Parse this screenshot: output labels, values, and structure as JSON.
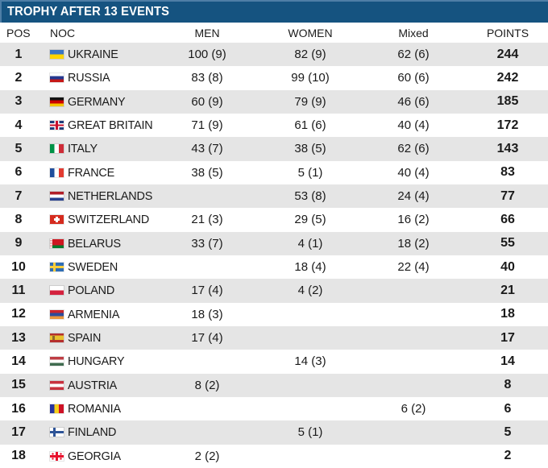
{
  "title": "TROPHY AFTER 13 EVENTS",
  "colors": {
    "title_bar_bg": "#155380",
    "title_bar_border": "#4E7EA6",
    "title_text": "#FFFFFF",
    "row_alt_bg": "#E5E5E5",
    "row_bg": "#FFFFFF",
    "text": "#1A1A1A"
  },
  "table": {
    "columns": [
      {
        "key": "pos",
        "label": "POS"
      },
      {
        "key": "noc",
        "label": "NOC"
      },
      {
        "key": "men",
        "label": "MEN"
      },
      {
        "key": "women",
        "label": "WOMEN"
      },
      {
        "key": "mixed",
        "label": "Mixed"
      },
      {
        "key": "points",
        "label": "POINTS"
      }
    ],
    "rows": [
      {
        "pos": "1",
        "flag": "ua",
        "noc": "UKRAINE",
        "men": "100 (9)",
        "women": "82 (9)",
        "mixed": "62 (6)",
        "points": "244"
      },
      {
        "pos": "2",
        "flag": "ru",
        "noc": "RUSSIA",
        "men": "83 (8)",
        "women": "99 (10)",
        "mixed": "60 (6)",
        "points": "242"
      },
      {
        "pos": "3",
        "flag": "de",
        "noc": "GERMANY",
        "men": "60 (9)",
        "women": "79 (9)",
        "mixed": "46 (6)",
        "points": "185"
      },
      {
        "pos": "4",
        "flag": "gb",
        "noc": "GREAT BRITAIN",
        "men": "71 (9)",
        "women": "61 (6)",
        "mixed": "40 (4)",
        "points": "172"
      },
      {
        "pos": "5",
        "flag": "it",
        "noc": "ITALY",
        "men": "43 (7)",
        "women": "38 (5)",
        "mixed": "62 (6)",
        "points": "143"
      },
      {
        "pos": "6",
        "flag": "fr",
        "noc": "FRANCE",
        "men": "38 (5)",
        "women": "5 (1)",
        "mixed": "40 (4)",
        "points": "83"
      },
      {
        "pos": "7",
        "flag": "nl",
        "noc": "NETHERLANDS",
        "men": "",
        "women": "53 (8)",
        "mixed": "24 (4)",
        "points": "77"
      },
      {
        "pos": "8",
        "flag": "ch",
        "noc": "SWITZERLAND",
        "men": "21 (3)",
        "women": "29 (5)",
        "mixed": "16 (2)",
        "points": "66"
      },
      {
        "pos": "9",
        "flag": "by",
        "noc": "BELARUS",
        "men": "33 (7)",
        "women": "4 (1)",
        "mixed": "18 (2)",
        "points": "55"
      },
      {
        "pos": "10",
        "flag": "se",
        "noc": "SWEDEN",
        "men": "",
        "women": "18 (4)",
        "mixed": "22 (4)",
        "points": "40"
      },
      {
        "pos": "11",
        "flag": "pl",
        "noc": "POLAND",
        "men": "17 (4)",
        "women": "4 (2)",
        "mixed": "",
        "points": "21"
      },
      {
        "pos": "12",
        "flag": "am",
        "noc": "ARMENIA",
        "men": "18 (3)",
        "women": "",
        "mixed": "",
        "points": "18"
      },
      {
        "pos": "13",
        "flag": "es",
        "noc": "SPAIN",
        "men": "17 (4)",
        "women": "",
        "mixed": "",
        "points": "17"
      },
      {
        "pos": "14",
        "flag": "hu",
        "noc": "HUNGARY",
        "men": "",
        "women": "14 (3)",
        "mixed": "",
        "points": "14"
      },
      {
        "pos": "15",
        "flag": "at",
        "noc": "AUSTRIA",
        "men": "8 (2)",
        "women": "",
        "mixed": "",
        "points": "8"
      },
      {
        "pos": "16",
        "flag": "ro",
        "noc": "ROMANIA",
        "men": "",
        "women": "",
        "mixed": "6 (2)",
        "points": "6"
      },
      {
        "pos": "17",
        "flag": "fi",
        "noc": "FINLAND",
        "men": "",
        "women": "5 (1)",
        "mixed": "",
        "points": "5"
      },
      {
        "pos": "18",
        "flag": "ge",
        "noc": "GEORGIA",
        "men": "2 (2)",
        "women": "",
        "mixed": "",
        "points": "2"
      }
    ]
  },
  "chart_data": {
    "type": "table",
    "title": "TROPHY AFTER 13 EVENTS",
    "columns": [
      "POS",
      "NOC",
      "MEN",
      "WOMEN",
      "Mixed",
      "POINTS"
    ],
    "rows": [
      [
        "1",
        "UKRAINE",
        "100 (9)",
        "82 (9)",
        "62 (6)",
        "244"
      ],
      [
        "2",
        "RUSSIA",
        "83 (8)",
        "99 (10)",
        "60 (6)",
        "242"
      ],
      [
        "3",
        "GERMANY",
        "60 (9)",
        "79 (9)",
        "46 (6)",
        "185"
      ],
      [
        "4",
        "GREAT BRITAIN",
        "71 (9)",
        "61 (6)",
        "40 (4)",
        "172"
      ],
      [
        "5",
        "ITALY",
        "43 (7)",
        "38 (5)",
        "62 (6)",
        "143"
      ],
      [
        "6",
        "FRANCE",
        "38 (5)",
        "5 (1)",
        "40 (4)",
        "83"
      ],
      [
        "7",
        "NETHERLANDS",
        "",
        "53 (8)",
        "24 (4)",
        "77"
      ],
      [
        "8",
        "SWITZERLAND",
        "21 (3)",
        "29 (5)",
        "16 (2)",
        "66"
      ],
      [
        "9",
        "BELARUS",
        "33 (7)",
        "4 (1)",
        "18 (2)",
        "55"
      ],
      [
        "10",
        "SWEDEN",
        "",
        "18 (4)",
        "22 (4)",
        "40"
      ],
      [
        "11",
        "POLAND",
        "17 (4)",
        "4 (2)",
        "",
        "21"
      ],
      [
        "12",
        "ARMENIA",
        "18 (3)",
        "",
        "",
        "18"
      ],
      [
        "13",
        "SPAIN",
        "17 (4)",
        "",
        "",
        "17"
      ],
      [
        "14",
        "HUNGARY",
        "",
        "14 (3)",
        "",
        "14"
      ],
      [
        "15",
        "AUSTRIA",
        "8 (2)",
        "",
        "",
        "8"
      ],
      [
        "16",
        "ROMANIA",
        "",
        "",
        "6 (2)",
        "6"
      ],
      [
        "17",
        "FINLAND",
        "",
        "5 (1)",
        "",
        "5"
      ],
      [
        "18",
        "GEORGIA",
        "2 (2)",
        "",
        "",
        "2"
      ]
    ]
  }
}
